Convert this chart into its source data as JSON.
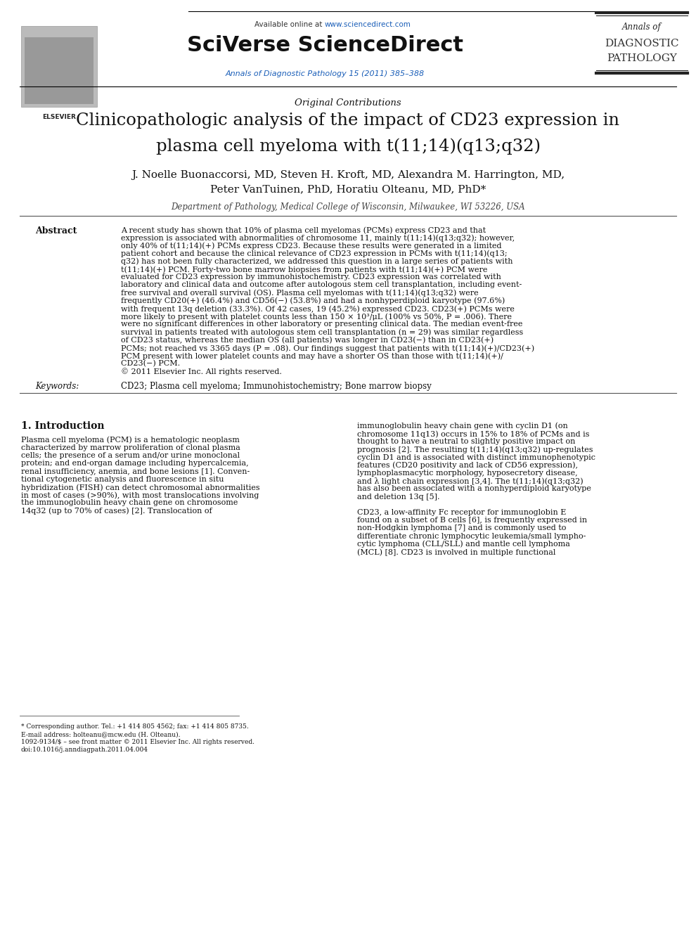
{
  "bg_color": "#ffffff",
  "header_available": "Available online at ",
  "header_url": "www.sciencedirect.com",
  "header_brand": "SciVerse ScienceDirect",
  "header_journal": "Annals of Diagnostic Pathology 15 (2011) 385–388",
  "header_annals": "Annals of",
  "header_diagnostic": "DIAGNOSTIC",
  "header_pathology": "PATHOLOGY",
  "section_label": "Original Contributions",
  "title_line1": "Clinicopathologic analysis of the impact of CD23 expression in",
  "title_line2": "plasma cell myeloma with t(11;14)(q13;q32)",
  "authors_line1": "J. Noelle Buonaccorsi, MD, Steven H. Kroft, MD, Alexandra M. Harrington, MD,",
  "authors_line2": "Peter VanTuinen, PhD, Horatiu Olteanu, MD, PhD*",
  "affiliation": "Department of Pathology, Medical College of Wisconsin, Milwaukee, WI 53226, USA",
  "abstract_label": "Abstract",
  "abstract_lines": [
    "A recent study has shown that 10% of plasma cell myelomas (PCMs) express CD23 and that",
    "expression is associated with abnormalities of chromosome 11, mainly t(11;14)(q13;q32); however,",
    "only 40% of t(11;14)(+) PCMs express CD23. Because these results were generated in a limited",
    "patient cohort and because the clinical relevance of CD23 expression in PCMs with t(11;14)(q13;",
    "q32) has not been fully characterized, we addressed this question in a large series of patients with",
    "t(11;14)(+) PCM. Forty-two bone marrow biopsies from patients with t(11;14)(+) PCM were",
    "evaluated for CD23 expression by immunohistochemistry. CD23 expression was correlated with",
    "laboratory and clinical data and outcome after autologous stem cell transplantation, including event-",
    "free survival and overall survival (OS). Plasma cell myelomas with t(11;14)(q13;q32) were",
    "frequently CD20(+) (46.4%) and CD56(−) (53.8%) and had a nonhyperdiploid karyotype (97.6%)",
    "with frequent 13q deletion (33.3%). Of 42 cases, 19 (45.2%) expressed CD23. CD23(+) PCMs were",
    "more likely to present with platelet counts less than 150 × 10³/μL (100% vs 50%, P = .006). There",
    "were no significant differences in other laboratory or presenting clinical data. The median event-free",
    "survival in patients treated with autologous stem cell transplantation (n = 29) was similar regardless",
    "of CD23 status, whereas the median OS (all patients) was longer in CD23(−) than in CD23(+)",
    "PCMs; not reached vs 3365 days (P = .08). Our findings suggest that patients with t(11;14)(+)/CD23(+)",
    "PCM present with lower platelet counts and may have a shorter OS than those with t(11;14)(+)/",
    "CD23(−) PCM.",
    "© 2011 Elsevier Inc. All rights reserved."
  ],
  "keywords_label": "Keywords:",
  "keywords_text": "CD23; Plasma cell myeloma; Immunohistochemistry; Bone marrow biopsy",
  "intro_heading": "1. Introduction",
  "intro_col1_lines": [
    "Plasma cell myeloma (PCM) is a hematologic neoplasm",
    "characterized by marrow proliferation of clonal plasma",
    "cells; the presence of a serum and/or urine monoclonal",
    "protein; and end-organ damage including hypercalcemia,",
    "renal insufficiency, anemia, and bone lesions [1]. Conven-",
    "tional cytogenetic analysis and fluorescence in situ",
    "hybridization (FISH) can detect chromosomal abnormalities",
    "in most of cases (>90%), with most translocations involving",
    "the immunoglobulin heavy chain gene on chromosome",
    "14q32 (up to 70% of cases) [2]. Translocation of"
  ],
  "intro_col2_lines": [
    "immunoglobulin heavy chain gene with cyclin D1 (on",
    "chromosome 11q13) occurs in 15% to 18% of PCMs and is",
    "thought to have a neutral to slightly positive impact on",
    "prognosis [2]. The resulting t(11;14)(q13;q32) up-regulates",
    "cyclin D1 and is associated with distinct immunophenotypic",
    "features (CD20 positivity and lack of CD56 expression),",
    "lymphoplasmacytic morphology, hyposecretory disease,",
    "and λ light chain expression [3,4]. The t(11;14)(q13;q32)",
    "has also been associated with a nonhyperdiploid karyotype",
    "and deletion 13q [5].",
    "",
    "CD23, a low-affinity Fc receptor for immunoglobin E",
    "found on a subset of B cells [6], is frequently expressed in",
    "non-Hodgkin lymphoma [7] and is commonly used to",
    "differentiate chronic lymphocytic leukemia/small lympho-",
    "cytic lymphoma (CLL/SLL) and mantle cell lymphoma",
    "(MCL) [8]. CD23 is involved in multiple functional"
  ],
  "footnote1": "* Corresponding author. Tel.: +1 414 805 4562; fax: +1 414 805 8735.",
  "footnote2": "E-mail address: holteanu@mcw.edu (H. Olteanu).",
  "footnote3": "1092-9134/$ – see front matter © 2011 Elsevier Inc. All rights reserved.",
  "footnote4": "doi:10.1016/j.anndiagpath.2011.04.004",
  "color_blue": "#1a5eb8",
  "color_text": "#111111",
  "color_gray": "#444444",
  "color_line": "#555555"
}
